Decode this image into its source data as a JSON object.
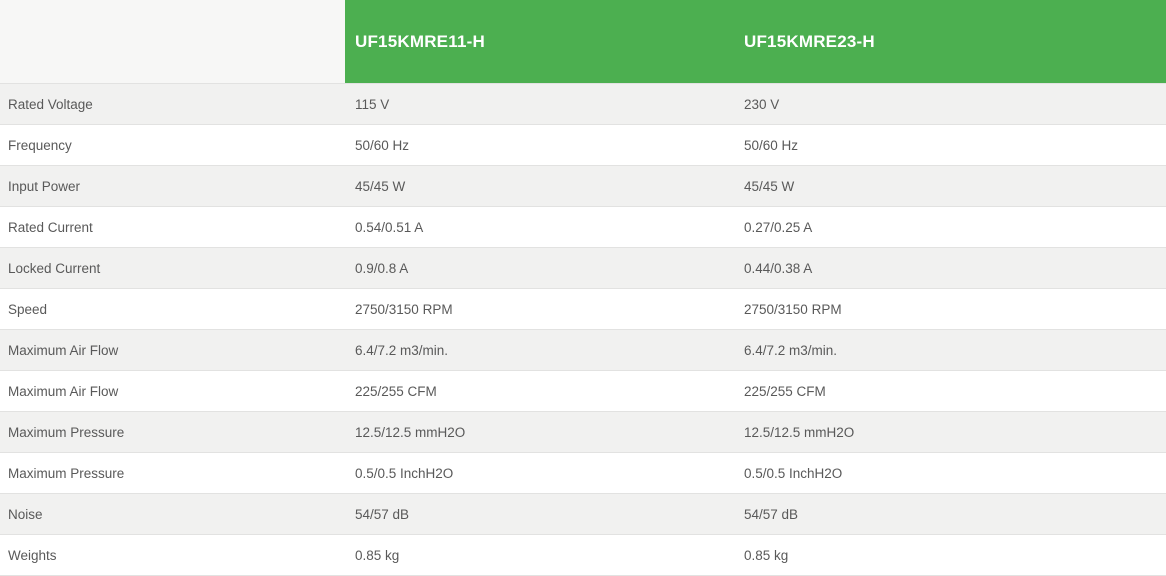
{
  "table": {
    "columns": [
      {
        "label": "UF15KMRE11-H"
      },
      {
        "label": "UF15KMRE23-H"
      }
    ],
    "rows": [
      {
        "label": "Rated Voltage",
        "col1": "115 V",
        "col2": "230 V"
      },
      {
        "label": "Frequency",
        "col1": "50/60 Hz",
        "col2": "50/60 Hz"
      },
      {
        "label": "Input Power",
        "col1": "45/45 W",
        "col2": "45/45 W"
      },
      {
        "label": "Rated Current",
        "col1": "0.54/0.51 A",
        "col2": "0.27/0.25 A"
      },
      {
        "label": "Locked Current",
        "col1": "0.9/0.8 A",
        "col2": "0.44/0.38 A"
      },
      {
        "label": "Speed",
        "col1": "2750/3150 RPM",
        "col2": "2750/3150 RPM"
      },
      {
        "label": "Maximum Air Flow",
        "col1": "6.4/7.2 m3/min.",
        "col2": "6.4/7.2 m3/min."
      },
      {
        "label": "Maximum Air Flow",
        "col1": "225/255 CFM",
        "col2": "225/255 CFM"
      },
      {
        "label": "Maximum Pressure",
        "col1": "12.5/12.5 mmH2O",
        "col2": "12.5/12.5 mmH2O"
      },
      {
        "label": "Maximum Pressure",
        "col1": "0.5/0.5 InchH2O",
        "col2": "0.5/0.5 InchH2O"
      },
      {
        "label": "Noise",
        "col1": "54/57 dB",
        "col2": "54/57 dB"
      },
      {
        "label": "Weights",
        "col1": "0.85 kg",
        "col2": "0.85 kg"
      }
    ],
    "colors": {
      "header_green": "#4caf50",
      "header_text": "#ffffff",
      "row_alt_bg": "#f1f1f0",
      "row_bg": "#ffffff",
      "corner_bg": "#f7f7f6",
      "border": "#e2e2e1",
      "text": "#595959"
    }
  }
}
